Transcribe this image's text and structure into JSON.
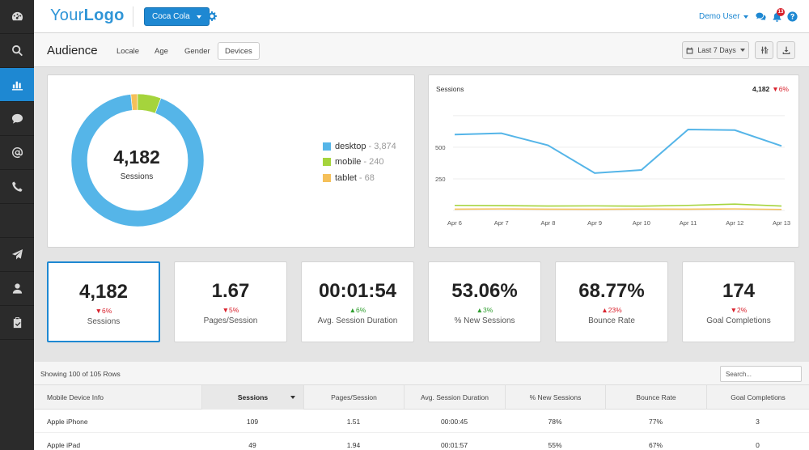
{
  "sidebar": {
    "items": [
      {
        "icon": "dashboard-icon",
        "active": false
      },
      {
        "icon": "search-icon",
        "active": false
      },
      {
        "icon": "bar-chart-icon",
        "active": true
      },
      {
        "icon": "chat-bubble-icon",
        "active": false
      },
      {
        "icon": "at-sign-icon",
        "active": false
      },
      {
        "icon": "phone-icon",
        "active": false
      },
      {
        "icon": "send-icon",
        "active": false
      },
      {
        "icon": "user-icon",
        "active": false
      },
      {
        "icon": "clipboard-check-icon",
        "active": false
      }
    ]
  },
  "header": {
    "logo_part1": "Your",
    "logo_part2": "Logo",
    "brand_select": "Coca Cola",
    "user_name": "Demo User",
    "notification_count": "13"
  },
  "subheader": {
    "title": "Audience",
    "tabs": [
      "Locale",
      "Age",
      "Gender",
      "Devices"
    ],
    "active_tab": "Devices",
    "date_range": "Last 7 Days"
  },
  "colors": {
    "accent": "#1e88d2",
    "desktop": "#55b5e8",
    "mobile": "#a5d43c",
    "tablet": "#f5c05a",
    "down": "#d9232e",
    "up": "#2f9e2f"
  },
  "donut": {
    "total": "4,182",
    "label": "Sessions",
    "legend": [
      {
        "name": "desktop",
        "value": "3,874"
      },
      {
        "name": "mobile",
        "value": "240"
      },
      {
        "name": "tablet",
        "value": "68"
      }
    ]
  },
  "line_chart": {
    "title": "Sessions",
    "total": "4,182",
    "change": "▼6%"
  },
  "chart_data": [
    {
      "type": "pie",
      "title": "",
      "categories": [
        "desktop",
        "mobile",
        "tablet"
      ],
      "values": [
        3874,
        240,
        68
      ]
    },
    {
      "type": "line",
      "title": "Sessions",
      "x": [
        "Apr 6",
        "Apr 7",
        "Apr 8",
        "Apr 9",
        "Apr 10",
        "Apr 11",
        "Apr 12",
        "Apr 13"
      ],
      "series": [
        {
          "name": "desktop",
          "values": [
            600,
            610,
            515,
            295,
            320,
            640,
            635,
            510
          ]
        },
        {
          "name": "mobile",
          "values": [
            40,
            38,
            35,
            36,
            34,
            40,
            50,
            35
          ]
        },
        {
          "name": "tablet",
          "values": [
            10,
            12,
            10,
            9,
            11,
            10,
            12,
            8
          ]
        }
      ],
      "yticks": [
        "250",
        "500"
      ],
      "ylim": [
        0,
        800
      ],
      "grid": true
    }
  ],
  "metrics": [
    {
      "value": "4,182",
      "change": "▼6%",
      "direction": "down",
      "label": "Sessions",
      "active": true
    },
    {
      "value": "1.67",
      "change": "▼5%",
      "direction": "down",
      "label": "Pages/Session",
      "active": false
    },
    {
      "value": "00:01:54",
      "change": "▲6%",
      "direction": "up",
      "label": "Avg. Session Duration",
      "active": false
    },
    {
      "value": "53.06%",
      "change": "▲3%",
      "direction": "up",
      "label": "% New Sessions",
      "active": false
    },
    {
      "value": "68.77%",
      "change": "▲23%",
      "direction": "up_bad",
      "label": "Bounce Rate",
      "active": false
    },
    {
      "value": "174",
      "change": "▼2%",
      "direction": "down",
      "label": "Goal Completions",
      "active": false
    }
  ],
  "table": {
    "showing": "Showing 100 of 105 Rows",
    "search_placeholder": "Search...",
    "columns": [
      "Mobile Device Info",
      "Sessions",
      "Pages/Session",
      "Avg. Session Duration",
      "% New Sessions",
      "Bounce Rate",
      "Goal Completions"
    ],
    "rows": [
      [
        "Apple iPhone",
        "109",
        "1.51",
        "00:00:45",
        "78%",
        "77%",
        "3"
      ],
      [
        "Apple iPad",
        "49",
        "1.94",
        "00:01:57",
        "55%",
        "67%",
        "0"
      ]
    ]
  }
}
